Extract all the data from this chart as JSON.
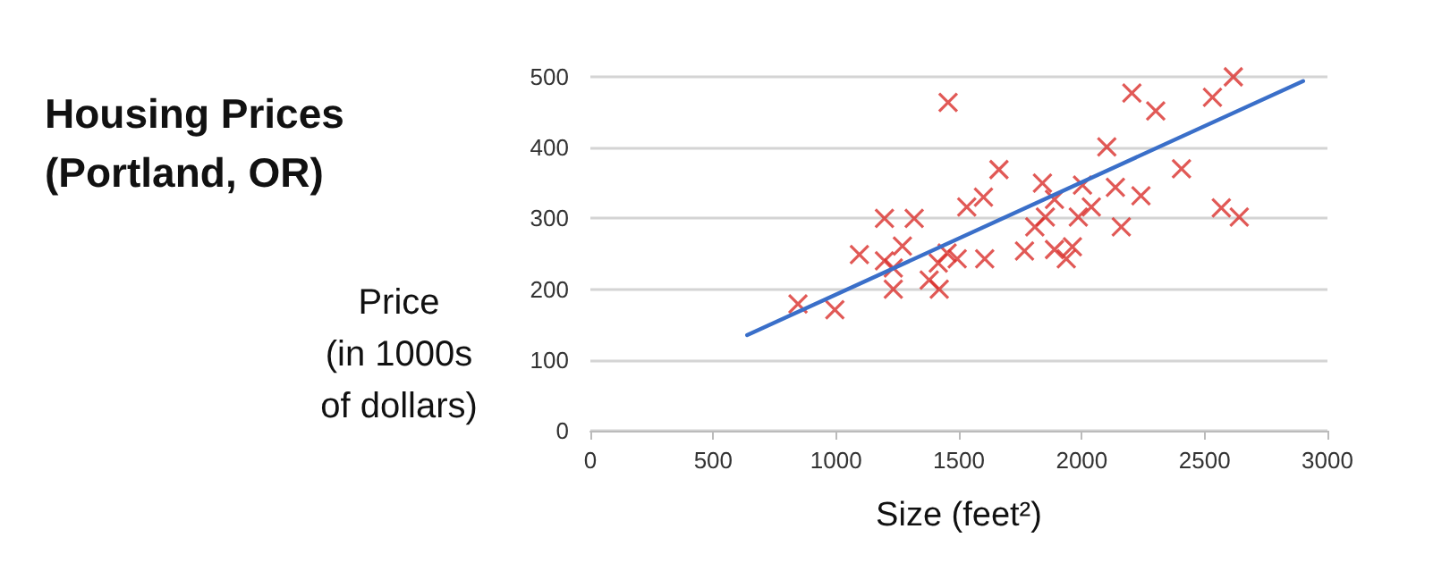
{
  "chart_data": {
    "type": "scatter",
    "title": "Housing Prices\n(Portland, OR)",
    "xlabel": "Size (feet²)",
    "ylabel": "Price\n(in 1000s\nof dollars)",
    "xlim": [
      0,
      3000
    ],
    "xticks": [
      0,
      500,
      1000,
      1500,
      2000,
      2500,
      3000
    ],
    "ylim": [
      0,
      500
    ],
    "yticks": [
      0,
      100,
      200,
      300,
      400,
      500
    ],
    "grid": "y",
    "series": [
      {
        "marker": "cross",
        "color": "#d9302c",
        "x": [
          845,
          995,
          1095,
          1197,
          1197,
          1233,
          1233,
          1270,
          1318,
          1456,
          1379,
          1416,
          1420,
          1452,
          1493,
          1532,
          1600,
          1605,
          1663,
          1767,
          1809,
          1840,
          1852,
          1889,
          1889,
          1937,
          1962,
          1986,
          2003,
          2039,
          2102,
          2137,
          2161,
          2204,
          2241,
          2301,
          2406,
          2532,
          2568,
          2617,
          2641
        ],
        "values": [
          179,
          171,
          249,
          300,
          240,
          230,
          200,
          261,
          300,
          464,
          213,
          237,
          200,
          251,
          243,
          316,
          330,
          243,
          369,
          254,
          288,
          350,
          302,
          327,
          256,
          243,
          260,
          302,
          347,
          316,
          401,
          344,
          288,
          477,
          332,
          452,
          370,
          471,
          315,
          500,
          302
        ]
      },
      {
        "type": "line",
        "marker": "none",
        "color": "#3a6fc9",
        "x": [
          638,
          2901
        ],
        "values": [
          135,
          494
        ]
      }
    ]
  }
}
